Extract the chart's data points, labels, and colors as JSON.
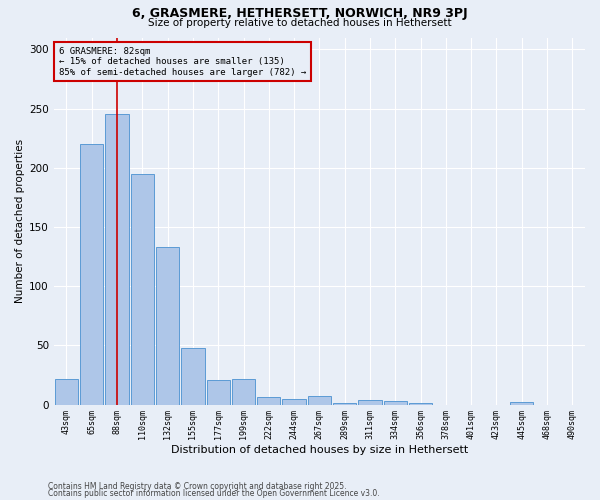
{
  "title1": "6, GRASMERE, HETHERSETT, NORWICH, NR9 3PJ",
  "title2": "Size of property relative to detached houses in Hethersett",
  "xlabel": "Distribution of detached houses by size in Hethersett",
  "ylabel": "Number of detached properties",
  "bar_values": [
    22,
    220,
    245,
    195,
    133,
    48,
    21,
    22,
    6,
    5,
    7,
    1,
    4,
    3,
    1,
    0,
    0,
    0,
    2,
    0,
    0
  ],
  "bin_labels": [
    "43sqm",
    "65sqm",
    "88sqm",
    "110sqm",
    "132sqm",
    "155sqm",
    "177sqm",
    "199sqm",
    "222sqm",
    "244sqm",
    "267sqm",
    "289sqm",
    "311sqm",
    "334sqm",
    "356sqm",
    "378sqm",
    "401sqm",
    "423sqm",
    "445sqm",
    "468sqm",
    "490sqm"
  ],
  "bar_color": "#aec6e8",
  "bar_edge_color": "#5b9bd5",
  "vline_x_index": 2,
  "vline_color": "#cc0000",
  "annotation_title": "6 GRASMERE: 82sqm",
  "annotation_line1": "← 15% of detached houses are smaller (135)",
  "annotation_line2": "85% of semi-detached houses are larger (782) →",
  "annotation_box_color": "#cc0000",
  "footnote1": "Contains HM Land Registry data © Crown copyright and database right 2025.",
  "footnote2": "Contains public sector information licensed under the Open Government Licence v3.0.",
  "ylim": [
    0,
    310
  ],
  "background_color": "#e8eef7",
  "grid_color": "#ffffff"
}
